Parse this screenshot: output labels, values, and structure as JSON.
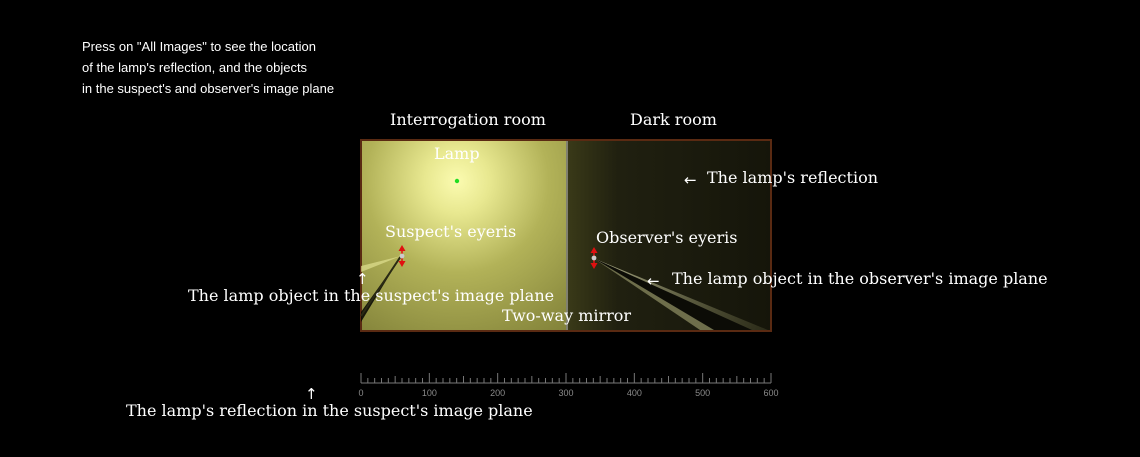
{
  "instructions": "Press on \"All Images\" to see the location\nof the lamp's reflection, and the objects\nin the suspect's and observer's image plane",
  "rooms": {
    "interrogation": "Interrogation room",
    "dark": "Dark room"
  },
  "labels": {
    "lamp": "Lamp",
    "suspect_eye": "Suspect's eyeris",
    "observer_eye": "Observer's eyeris",
    "mirror": "Two-way mirror",
    "lamp_reflection": "The lamp's reflection",
    "lamp_obj_suspect": "The lamp object in the suspect's image plane",
    "lamp_obj_observer": "The lamp object in the observer's image plane",
    "reflection_suspect": "The lamp's reflection in the suspect's image plane"
  },
  "ruler": {
    "min": 0,
    "max": 600,
    "major_step": 100,
    "minor_step": 10,
    "tick_labels": [
      "0",
      "100",
      "200",
      "300",
      "400",
      "500",
      "600"
    ]
  },
  "colors": {
    "lamp_glow": "#f4f4a0",
    "room_light": "#a8a850",
    "room_dark": "#1c1c0a",
    "frame": "#5a2a12",
    "lamp_dot": "#22dd22",
    "eye_marker": "#e01010"
  }
}
